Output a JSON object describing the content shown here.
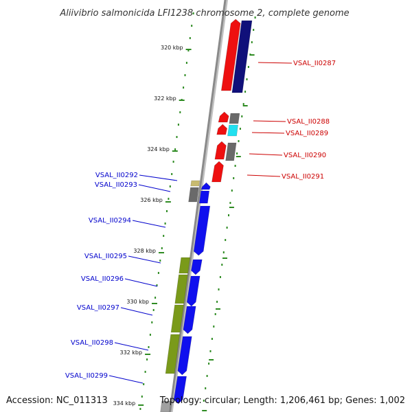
{
  "header": {
    "title": "Aliivibrio salmonicida LFI1238 chromosome 2, complete genome"
  },
  "footer": {
    "accession": "Accession: NC_011313",
    "summary": "Topology: circular; Length: 1,206,461 bp; Genes: 1,002"
  },
  "ruler": {
    "unit": "kbp",
    "ticks": [
      {
        "kbp": 320,
        "label": "320 kbp"
      },
      {
        "kbp": 322,
        "label": "322 kbp"
      },
      {
        "kbp": 324,
        "label": "324 kbp"
      },
      {
        "kbp": 326,
        "label": "326 kbp"
      },
      {
        "kbp": 328,
        "label": "328 kbp"
      },
      {
        "kbp": 330,
        "label": "330 kbp"
      },
      {
        "kbp": 332,
        "label": "332 kbp"
      },
      {
        "kbp": 334,
        "label": "334 kbp"
      }
    ]
  },
  "colors": {
    "backbone": "#8a8a8a",
    "forward_label": "#0000cc",
    "reverse_label": "#cc0000",
    "forward_gene": "#1010ee",
    "reverse_gene": "#ee1010",
    "navy_gene": "#10107a",
    "olive_gene": "#7a9a1a",
    "gray_gene": "#6a6a6a",
    "tan_gene": "#c8bb70",
    "cyan_gene": "#22e0f0",
    "ticks": "#2e8b22"
  },
  "genes": [
    {
      "id": "VSAL_II0287",
      "strand": "reverse",
      "label_side": "right"
    },
    {
      "id": "VSAL_II0288",
      "strand": "reverse",
      "label_side": "right"
    },
    {
      "id": "VSAL_II0289",
      "strand": "reverse",
      "label_side": "right"
    },
    {
      "id": "VSAL_II0290",
      "strand": "reverse",
      "label_side": "right"
    },
    {
      "id": "VSAL_II0291",
      "strand": "reverse",
      "label_side": "right"
    },
    {
      "id": "VSAL_II0292",
      "strand": "forward",
      "label_side": "left"
    },
    {
      "id": "VSAL_II0293",
      "strand": "forward",
      "label_side": "left"
    },
    {
      "id": "VSAL_II0294",
      "strand": "forward",
      "label_side": "left"
    },
    {
      "id": "VSAL_II0295",
      "strand": "forward",
      "label_side": "left"
    },
    {
      "id": "VSAL_II0296",
      "strand": "forward",
      "label_side": "left"
    },
    {
      "id": "VSAL_II0297",
      "strand": "forward",
      "label_side": "left"
    },
    {
      "id": "VSAL_II0298",
      "strand": "forward",
      "label_side": "left"
    },
    {
      "id": "VSAL_II0299",
      "strand": "forward",
      "label_side": "left"
    }
  ]
}
